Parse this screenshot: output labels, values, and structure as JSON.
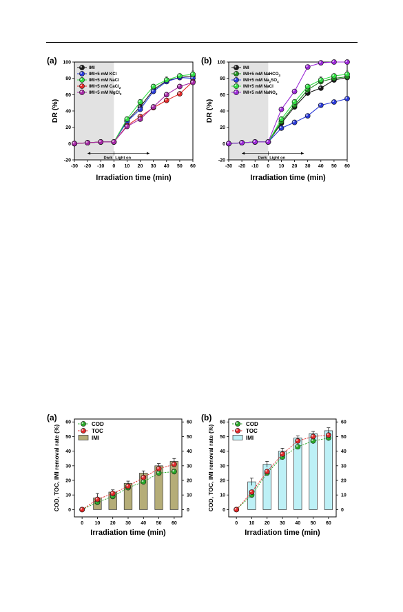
{
  "page": {
    "rule": true
  },
  "figures": [
    {
      "panel_label": "(a)",
      "chart_data": {
        "type": "line",
        "xlabel": "Irradiation time  (min)",
        "ylabel": "DR  (%)",
        "xlim": [
          -30,
          60
        ],
        "ylim": [
          -20,
          100
        ],
        "xticks": [
          -30,
          -20,
          -10,
          0,
          10,
          20,
          30,
          40,
          50,
          60
        ],
        "yticks": [
          -20,
          0,
          20,
          40,
          60,
          80,
          100
        ],
        "x": [
          -30,
          -20,
          -10,
          0,
          10,
          20,
          30,
          40,
          50,
          60
        ],
        "annotation": {
          "dark": "Dark",
          "light": "Light on"
        },
        "legend_position": "top-left",
        "series": [
          {
            "name": "IMI",
            "color": "#1a1a1a",
            "values": [
              0,
              1,
              2,
              2,
              28,
              45,
              66,
              77,
              81,
              83
            ],
            "errors": [
              0,
              0,
              0,
              0,
              2,
              2,
              2,
              2,
              2,
              3
            ]
          },
          {
            "name": "IMI+5 mM KCl",
            "color": "#2a3ad6",
            "values": [
              0,
              1,
              2,
              2,
              27,
              42,
              64,
              76,
              81,
              80
            ],
            "errors": [
              0,
              0,
              0,
              0,
              2,
              2,
              2,
              2,
              2,
              3
            ]
          },
          {
            "name": "IMI+5 mM NaCl",
            "color": "#33dd44",
            "values": [
              0,
              1,
              2,
              2,
              30,
              51,
              70,
              78,
              83,
              85
            ],
            "errors": [
              0,
              0,
              0,
              0,
              2,
              3,
              2,
              4,
              2,
              4
            ]
          },
          {
            "name": "IMI+5 mM CaCl",
            "sub": "2",
            "color": "#e02a2a",
            "values": [
              0,
              1,
              2,
              2,
              22,
              33,
              44,
              53,
              61,
              76
            ],
            "errors": [
              0,
              0,
              0,
              0,
              2,
              2,
              2,
              2,
              2,
              2
            ]
          },
          {
            "name": "IMI+5 mM MgCl",
            "sub": "2",
            "color": "#a62aa6",
            "values": [
              0,
              1,
              2,
              2,
              21,
              30,
              45,
              60,
              70,
              75
            ],
            "errors": [
              0,
              0,
              0,
              0,
              2,
              2,
              2,
              2,
              2,
              2
            ]
          }
        ]
      }
    },
    {
      "panel_label": "(b)",
      "chart_data": {
        "type": "line",
        "xlabel": "Irradiation time  (min)",
        "ylabel": "DR  (%)",
        "xlim": [
          -30,
          60
        ],
        "ylim": [
          -20,
          100
        ],
        "xticks": [
          -30,
          -20,
          -10,
          0,
          10,
          20,
          30,
          40,
          50,
          60
        ],
        "yticks": [
          -20,
          0,
          20,
          40,
          60,
          80,
          100
        ],
        "x": [
          -30,
          -20,
          -10,
          0,
          10,
          20,
          30,
          40,
          50,
          60
        ],
        "annotation": {
          "dark": "Dark",
          "light": "Light on"
        },
        "legend_position": "top-left",
        "series": [
          {
            "name": "IMI",
            "color": "#1a1a1a",
            "values": [
              0,
              1,
              2,
              2,
              25,
              45,
              62,
              68,
              78,
              81
            ],
            "errors": [
              0,
              0,
              0,
              0,
              2,
              2,
              2,
              2,
              3,
              3
            ]
          },
          {
            "name": "IMI+5 mM NaHCO",
            "sub": "3",
            "color": "#1f8f1f",
            "values": [
              0,
              1,
              2,
              2,
              27,
              47,
              66,
              76,
              80,
              82
            ],
            "errors": [
              0,
              0,
              0,
              0,
              2,
              2,
              2,
              4,
              3,
              4
            ]
          },
          {
            "name": "IMI+5 mM Na",
            "sub": "2",
            "tail": "SO",
            "sub2": "4",
            "color": "#2a3ad6",
            "values": [
              0,
              1,
              2,
              2,
              19,
              26,
              34,
              47,
              51,
              55
            ],
            "errors": [
              0,
              0,
              0,
              0,
              2,
              2,
              2,
              2,
              2,
              2
            ]
          },
          {
            "name": "IMI+5 mM NaCl",
            "color": "#33dd44",
            "values": [
              0,
              1,
              2,
              2,
              30,
              51,
              70,
              78,
              83,
              85
            ],
            "errors": [
              0,
              0,
              0,
              0,
              2,
              3,
              2,
              4,
              2,
              4
            ]
          },
          {
            "name": "IMI+5 mM NaNO",
            "sub": "3",
            "color": "#9b2ad6",
            "values": [
              0,
              1,
              2,
              2,
              42,
              64,
              94,
              99,
              100,
              100
            ],
            "errors": [
              0,
              0,
              0,
              0,
              2,
              2,
              2,
              2,
              2,
              2
            ]
          }
        ]
      }
    },
    {
      "panel_label": "(a)",
      "chart_data": {
        "type": "bar",
        "xlabel": "Irradiation time  (min)",
        "ylabel": "COD, TOC, IMI removal rate (%)",
        "categories": [
          "0",
          "10",
          "20",
          "30",
          "40",
          "50",
          "60"
        ],
        "x": [
          0,
          10,
          20,
          30,
          40,
          50,
          60
        ],
        "xticks": [
          0,
          10,
          20,
          30,
          40,
          50,
          60
        ],
        "ylim": [
          -5,
          62
        ],
        "yticks": [
          0,
          10,
          20,
          30,
          40,
          50,
          60
        ],
        "bar_color": "#b5ad78",
        "legend_position": "top-left",
        "series": [
          {
            "name": "COD",
            "kind": "line",
            "color": "#2aa82a",
            "values": [
              0,
              5,
              9,
              15,
              19,
              25,
              26
            ]
          },
          {
            "name": "TOC",
            "kind": "line",
            "color": "#e02a2a",
            "values": [
              0,
              7,
              11,
              16,
              22,
              28,
              31
            ]
          },
          {
            "name": "IMI",
            "kind": "bar",
            "values": [
              0,
              8,
              12,
              18,
              25,
              30,
              33
            ],
            "errors": [
              0,
              3,
              1.5,
              1.5,
              1.5,
              1.5,
              2
            ]
          }
        ]
      }
    },
    {
      "panel_label": "(b)",
      "chart_data": {
        "type": "bar",
        "xlabel": "Irradiation time  (min)",
        "ylabel": "COD, TOC, IMI removal rate (%)",
        "categories": [
          "0",
          "10",
          "20",
          "30",
          "40",
          "50",
          "60"
        ],
        "x": [
          0,
          10,
          20,
          30,
          40,
          50,
          60
        ],
        "xticks": [
          0,
          10,
          20,
          30,
          40,
          50,
          60
        ],
        "ylim": [
          -5,
          62
        ],
        "yticks": [
          0,
          10,
          20,
          30,
          40,
          50,
          60
        ],
        "bar_color": "#bdf0f6",
        "legend_position": "top-left",
        "series": [
          {
            "name": "COD",
            "kind": "line",
            "color": "#2aa82a",
            "values": [
              0,
              10,
              25,
              36,
              43,
              47,
              49
            ]
          },
          {
            "name": "TOC",
            "kind": "line",
            "color": "#e02a2a",
            "values": [
              0,
              12,
              26,
              38,
              47,
              50,
              51
            ]
          },
          {
            "name": "IMI",
            "kind": "bar",
            "values": [
              0,
              19,
              31,
              40,
              49,
              52,
              54
            ],
            "errors": [
              0,
              2.5,
              2,
              2,
              1.5,
              1.5,
              2
            ]
          }
        ]
      }
    }
  ]
}
